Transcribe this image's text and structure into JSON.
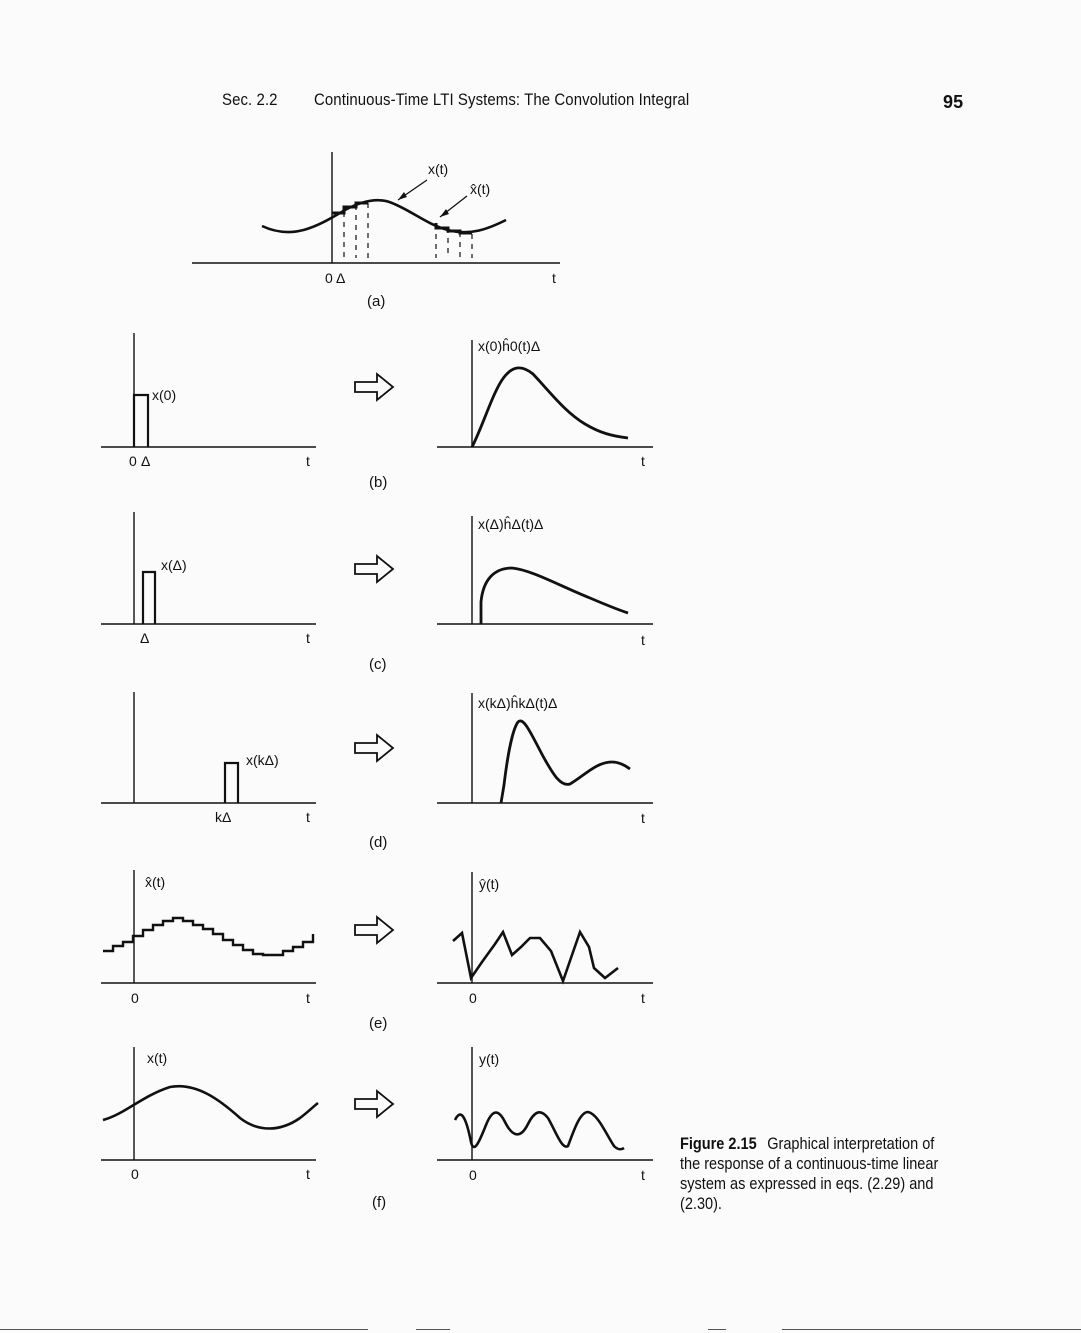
{
  "header": {
    "section": "Sec. 2.2",
    "title": "Continuous-Time LTI Systems: The Convolution Integral",
    "page_number": "95"
  },
  "figure": {
    "panel_a": {
      "label": "(a)",
      "curve_label": "x(t)",
      "approx_label": "x̂(t)",
      "tick_origin": "0",
      "tick_delta": "Δ",
      "axis_label": "t"
    },
    "panel_b": {
      "label": "(b)",
      "input_label": "x(0)",
      "tick_origin": "0",
      "tick_delta": "Δ",
      "axis_label": "t",
      "output_label": "x(0)ĥ0(t)Δ",
      "output_axis_label": "t"
    },
    "panel_c": {
      "label": "(c)",
      "input_label": "x(Δ)",
      "tick_delta": "Δ",
      "axis_label": "t",
      "output_label": "x(Δ)ĥΔ(t)Δ",
      "output_axis_label": "t"
    },
    "panel_d": {
      "label": "(d)",
      "input_label": "x(kΔ)",
      "tick_kdelta": "kΔ",
      "axis_label": "t",
      "output_label": "x(kΔ)ĥkΔ(t)Δ",
      "output_axis_label": "t"
    },
    "panel_e": {
      "label": "(e)",
      "input_label": "x̂(t)",
      "tick_origin": "0",
      "axis_label": "t",
      "output_label": "ŷ(t)",
      "output_tick_origin": "0",
      "output_axis_label": "t"
    },
    "panel_f": {
      "label": "(f)",
      "input_label": "x(t)",
      "tick_origin": "0",
      "axis_label": "t",
      "output_label": "y(t)",
      "output_tick_origin": "0",
      "output_axis_label": "t"
    },
    "arrow_icon": "right-hollow-arrow-icon"
  },
  "caption": {
    "figure_number": "Figure 2.15",
    "text": "Graphical interpretation of the response of a continuous-time linear system as expressed in eqs. (2.29) and (2.30)."
  }
}
